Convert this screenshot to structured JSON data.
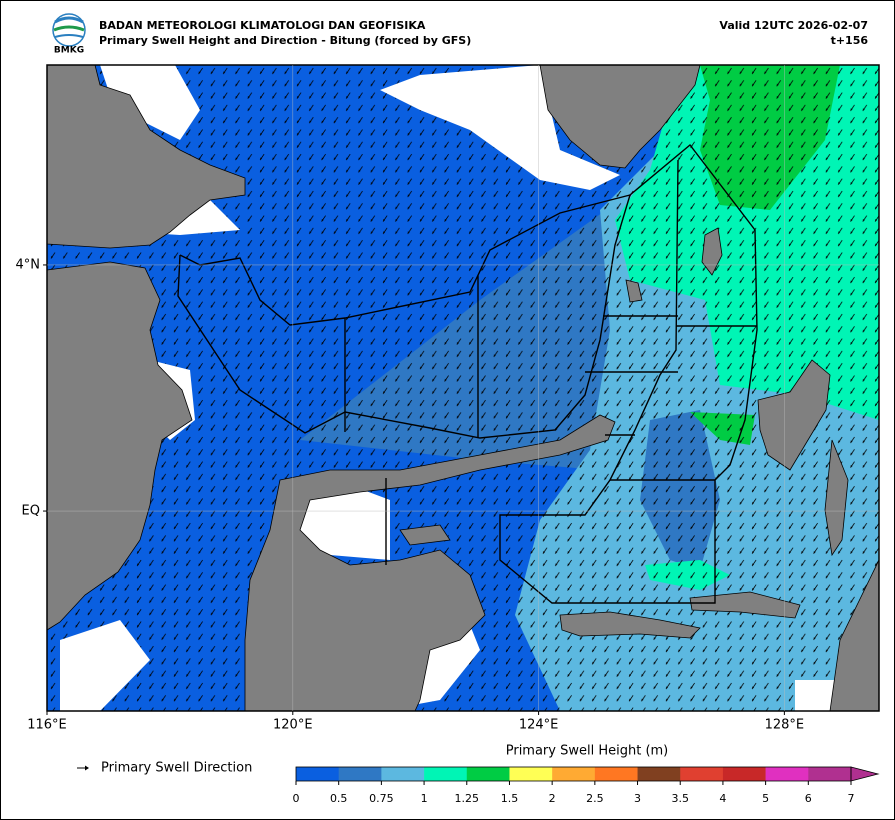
{
  "header": {
    "agency": "BADAN METEOROLOGI KLIMATOLOGI DAN GEOFISIKA",
    "title": "Primary Swell Height and Direction - Bitung (forced by GFS)",
    "valid": "Valid 12UTC 2026-02-07",
    "lead": "t+156",
    "logo_text": "BMKG"
  },
  "map": {
    "xlim": [
      116,
      129.54
    ],
    "ylim": [
      -3.25,
      7.25
    ],
    "xticks": [
      {
        "value": 116,
        "label": "116°E"
      },
      {
        "value": 120,
        "label": "120°E"
      },
      {
        "value": 124,
        "label": "124°E"
      },
      {
        "value": 128,
        "label": "128°E"
      }
    ],
    "yticks": [
      {
        "value": 4,
        "label": "4°N"
      },
      {
        "value": 0,
        "label": "EQ"
      }
    ],
    "grid": true
  },
  "legend": {
    "label": "Primary Swell Direction"
  },
  "colorbar": {
    "title": "Primary Swell Height (m)",
    "levels": [
      0,
      0.5,
      0.75,
      1,
      1.25,
      1.5,
      2,
      2.5,
      3,
      3.5,
      4,
      5,
      6,
      7
    ],
    "colors": [
      "#0a5fe0",
      "#2f78c4",
      "#5cb8e0",
      "#00f5b5",
      "#00cc44",
      "#ffff55",
      "#ffaa33",
      "#ff7722",
      "#804020",
      "#e04030",
      "#c82828",
      "#e030c0",
      "#b03090"
    ],
    "extend": "max"
  }
}
